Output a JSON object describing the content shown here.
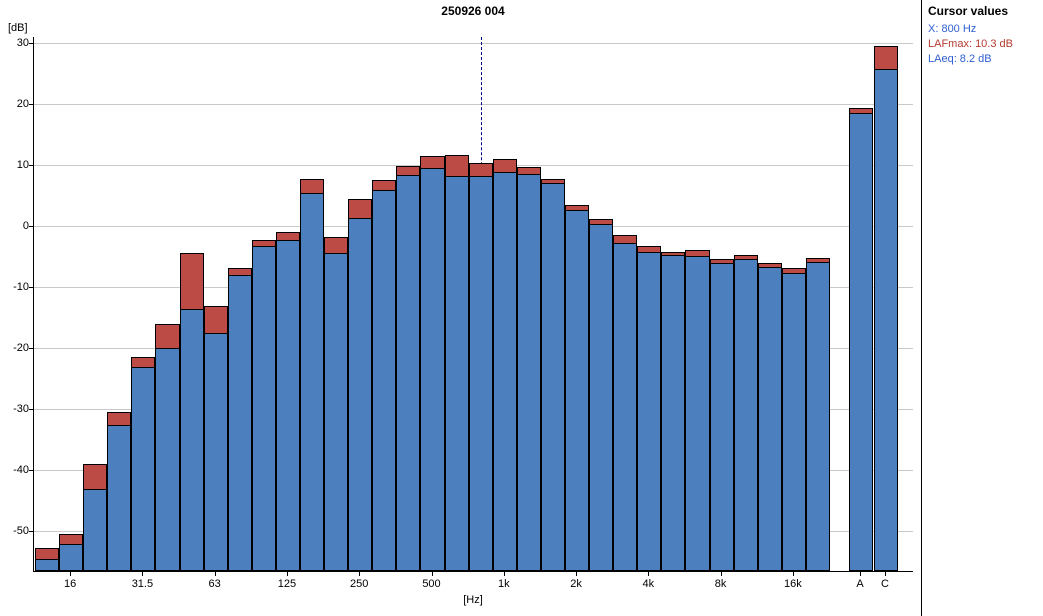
{
  "title": "250926 004",
  "ylabel": "[dB]",
  "xlabel": "[Hz]",
  "cursor_panel": {
    "title": "Cursor values",
    "x_label": "X: 800 Hz",
    "lafmax_label": "LAFmax: 10.3 dB",
    "laeq_label": "LAeq: 8.2 dB"
  },
  "colors": {
    "laeq_bar": "#4c7fbe",
    "lafmax_bar": "#bd4b45",
    "grid": "#c9c9c9",
    "cursor_line": "#00008b",
    "cursor_text_blue": "#2f5fd0",
    "cursor_text_red": "#b43c32",
    "axis": "#000000"
  },
  "chart_data": {
    "type": "bar",
    "title": "250926 004",
    "xlabel": "[Hz]",
    "ylabel": "[dB]",
    "ylim": [
      -56.5,
      31
    ],
    "yticks": [
      30,
      20,
      10,
      0,
      -10,
      -20,
      -30,
      -40,
      -50
    ],
    "grid": true,
    "legend_position": "none",
    "bands": [
      "12.5",
      "16",
      "20",
      "25",
      "31.5",
      "40",
      "50",
      "63",
      "80",
      "100",
      "125",
      "160",
      "200",
      "250",
      "315",
      "400",
      "500",
      "630",
      "800",
      "1k",
      "1.25k",
      "1.6k",
      "2k",
      "2.5k",
      "3.15k",
      "4k",
      "5k",
      "6.3k",
      "8k",
      "10k",
      "12.5k",
      "16k",
      "20k"
    ],
    "xtick_labels": [
      "16",
      "31.5",
      "63",
      "125",
      "250",
      "500",
      "1k",
      "2k",
      "4k",
      "8k",
      "16k"
    ],
    "xtick_band_indices": [
      1,
      4,
      7,
      10,
      13,
      16,
      19,
      22,
      25,
      28,
      31
    ],
    "series": [
      {
        "name": "LAFmax",
        "values": [
          -52.8,
          -50.5,
          -39.0,
          -30.5,
          -21.5,
          -16.0,
          -4.4,
          -13.0,
          -6.8,
          -2.2,
          -1.0,
          7.7,
          -1.8,
          4.4,
          7.6,
          9.8,
          11.5,
          11.7,
          10.3,
          11.0,
          9.7,
          7.8,
          3.5,
          1.2,
          -1.4,
          -3.2,
          -4.2,
          -3.9,
          -5.4,
          -4.7,
          -6.1,
          -6.9,
          -5.2
        ]
      },
      {
        "name": "LAeq",
        "values": [
          -54.5,
          -52.0,
          -43.0,
          -32.5,
          -23.0,
          -20.0,
          -13.5,
          -17.5,
          -8.0,
          -3.2,
          -2.2,
          5.5,
          -4.4,
          1.4,
          6.0,
          8.4,
          9.5,
          8.3,
          8.2,
          8.9,
          8.5,
          7.0,
          2.6,
          0.3,
          -2.8,
          -4.2,
          -4.8,
          -4.9,
          -6.1,
          -5.3,
          -6.7,
          -7.6,
          -5.9
        ]
      }
    ],
    "overall": {
      "labels": [
        "A",
        "C"
      ],
      "lafmax": [
        19.3,
        29.6
      ],
      "laeq": [
        18.5,
        25.8
      ]
    },
    "cursor_band": "800",
    "cursor_values": {
      "x": "800 Hz",
      "lafmax_db": 10.3,
      "laeq_db": 8.2
    }
  }
}
